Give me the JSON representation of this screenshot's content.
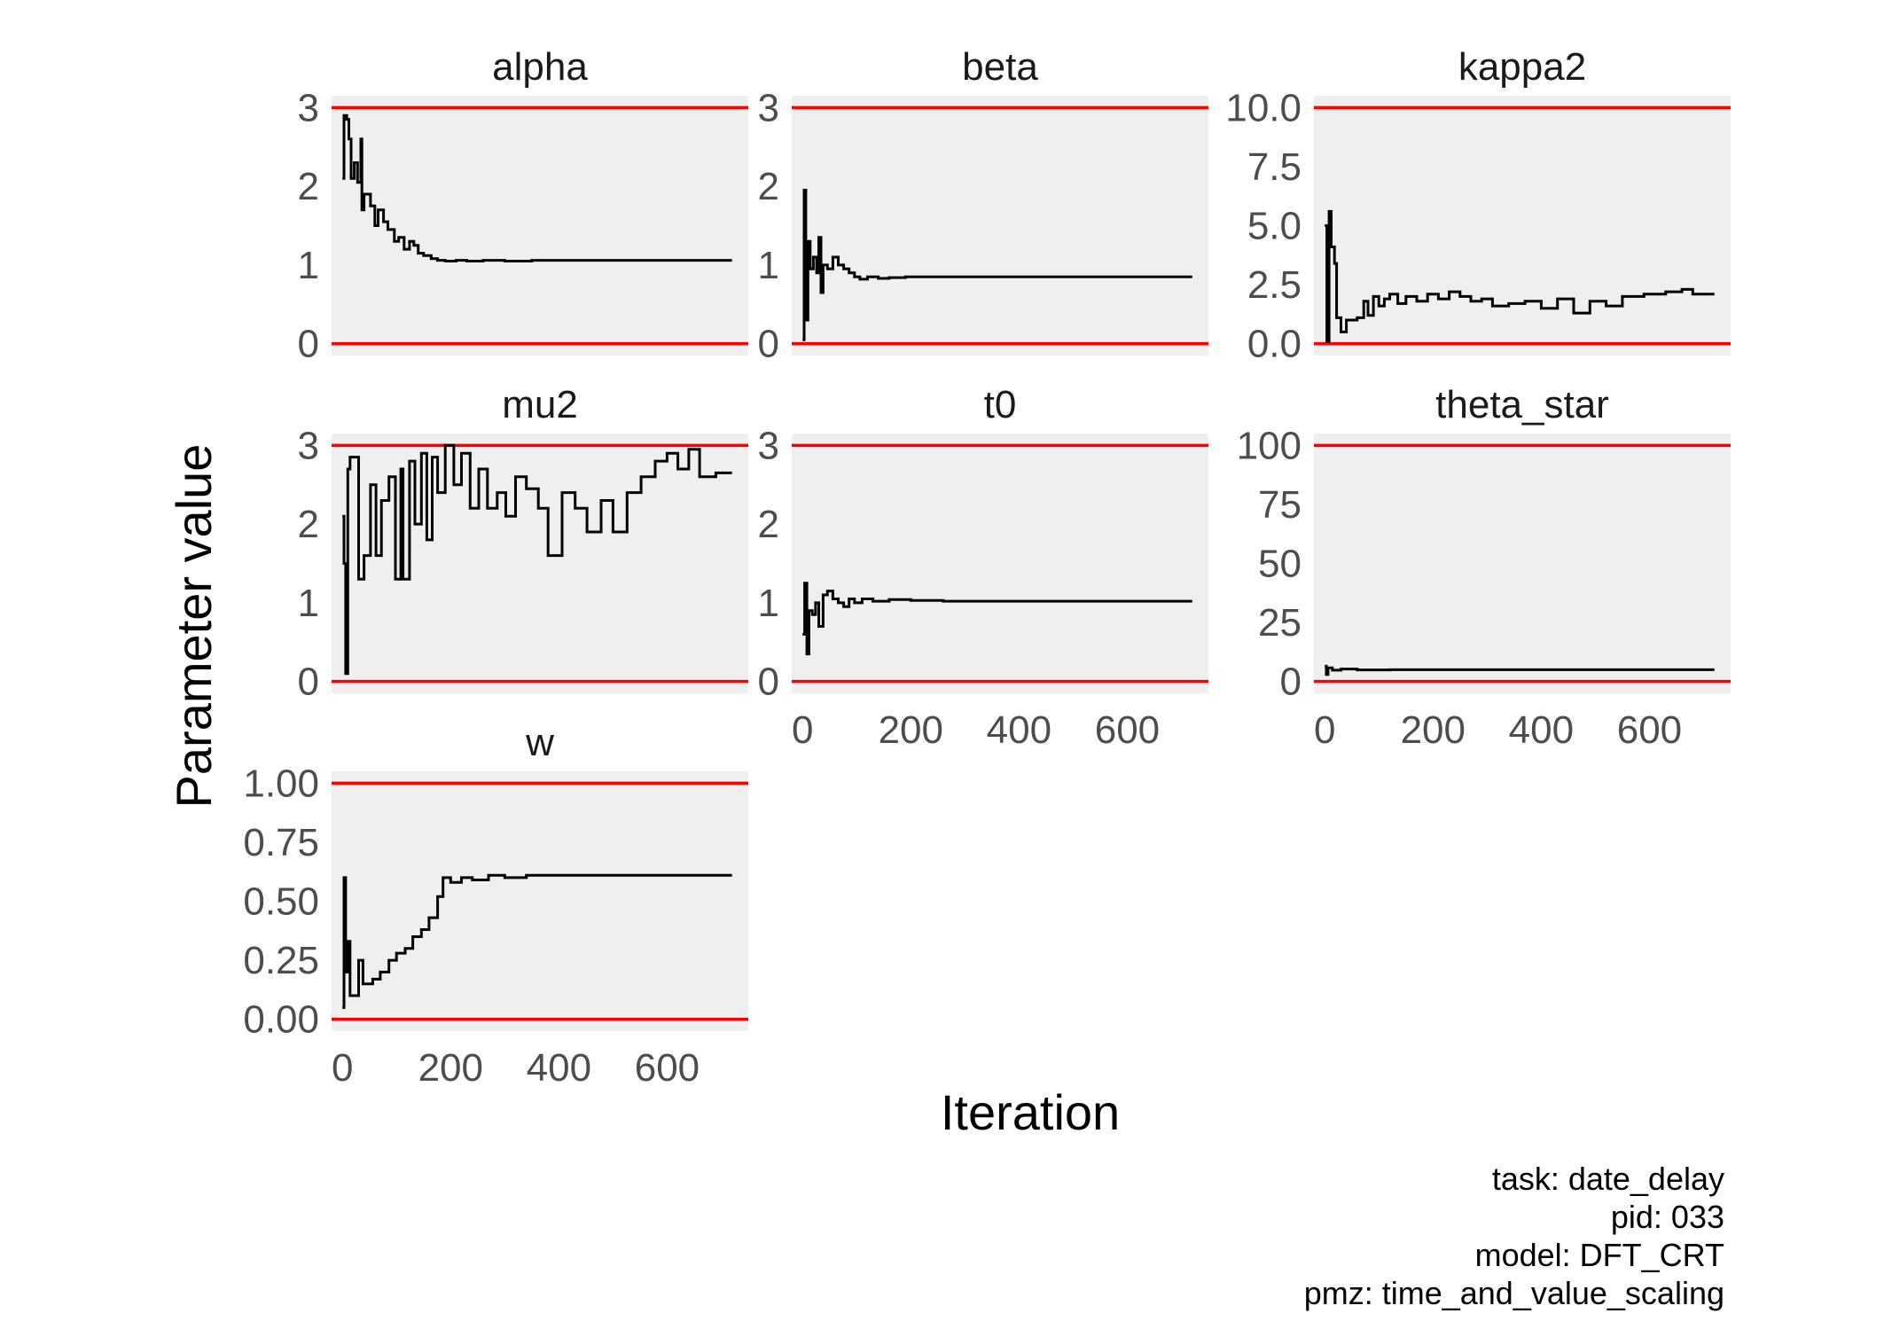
{
  "chart_data": {
    "type": "line",
    "xlabel": "Iteration",
    "ylabel": "Parameter value",
    "xlim": [
      -20,
      750
    ],
    "x_ticks": [
      "0",
      "200",
      "400",
      "600"
    ],
    "x_tick_values": [
      0,
      200,
      400,
      600
    ],
    "colors": {
      "panel": "#efefef",
      "bound_line": "#ff0000",
      "trace": "#000000",
      "tick_text": "#4d4d4d"
    },
    "panels": [
      {
        "name": "alpha",
        "ylim": [
          -0.15,
          3.15
        ],
        "y_ticks": [
          "0",
          "1",
          "2",
          "3"
        ],
        "y_tick_values": [
          0,
          1,
          2,
          3
        ],
        "bounds": [
          0,
          3
        ],
        "trace": [
          [
            0,
            2.1
          ],
          [
            3,
            2.9
          ],
          [
            8,
            2.85
          ],
          [
            12,
            2.6
          ],
          [
            16,
            2.1
          ],
          [
            22,
            2.3
          ],
          [
            28,
            2.05
          ],
          [
            34,
            2.6
          ],
          [
            36,
            1.7
          ],
          [
            40,
            1.9
          ],
          [
            52,
            1.75
          ],
          [
            60,
            1.5
          ],
          [
            66,
            1.7
          ],
          [
            76,
            1.55
          ],
          [
            84,
            1.45
          ],
          [
            96,
            1.3
          ],
          [
            104,
            1.35
          ],
          [
            114,
            1.2
          ],
          [
            124,
            1.3
          ],
          [
            132,
            1.25
          ],
          [
            140,
            1.15
          ],
          [
            150,
            1.12
          ],
          [
            164,
            1.08
          ],
          [
            176,
            1.06
          ],
          [
            190,
            1.05
          ],
          [
            210,
            1.06
          ],
          [
            230,
            1.05
          ],
          [
            260,
            1.06
          ],
          [
            300,
            1.05
          ],
          [
            350,
            1.06
          ],
          [
            720,
            1.06
          ]
        ]
      },
      {
        "name": "beta",
        "ylim": [
          -0.15,
          3.15
        ],
        "y_ticks": [
          "0",
          "1",
          "2",
          "3"
        ],
        "y_tick_values": [
          0,
          1,
          2,
          3
        ],
        "bounds": [
          0,
          3
        ],
        "trace": [
          [
            0,
            0.05
          ],
          [
            3,
            1.95
          ],
          [
            6,
            0.3
          ],
          [
            10,
            1.3
          ],
          [
            14,
            0.95
          ],
          [
            20,
            1.1
          ],
          [
            26,
            0.9
          ],
          [
            30,
            1.35
          ],
          [
            34,
            0.65
          ],
          [
            38,
            1.0
          ],
          [
            46,
            0.95
          ],
          [
            56,
            1.1
          ],
          [
            66,
            1.0
          ],
          [
            76,
            0.95
          ],
          [
            86,
            0.9
          ],
          [
            96,
            0.85
          ],
          [
            106,
            0.82
          ],
          [
            120,
            0.85
          ],
          [
            140,
            0.83
          ],
          [
            160,
            0.84
          ],
          [
            190,
            0.85
          ],
          [
            250,
            0.85
          ],
          [
            720,
            0.85
          ]
        ]
      },
      {
        "name": "kappa2",
        "ylim": [
          -0.5,
          10.5
        ],
        "y_ticks": [
          "0.0",
          "2.5",
          "5.0",
          "7.5",
          "10.0"
        ],
        "y_tick_values": [
          0,
          2.5,
          5.0,
          7.5,
          10.0
        ],
        "bounds": [
          0,
          10
        ],
        "trace": [
          [
            0,
            5.0
          ],
          [
            4,
            0.1
          ],
          [
            8,
            5.6
          ],
          [
            12,
            4.1
          ],
          [
            18,
            3.4
          ],
          [
            22,
            1.1
          ],
          [
            30,
            0.5
          ],
          [
            40,
            1.0
          ],
          [
            60,
            1.1
          ],
          [
            72,
            1.8
          ],
          [
            80,
            1.2
          ],
          [
            90,
            2.0
          ],
          [
            100,
            1.6
          ],
          [
            110,
            1.9
          ],
          [
            120,
            2.1
          ],
          [
            135,
            1.7
          ],
          [
            150,
            2.0
          ],
          [
            170,
            1.8
          ],
          [
            190,
            2.1
          ],
          [
            210,
            1.9
          ],
          [
            230,
            2.2
          ],
          [
            250,
            2.0
          ],
          [
            270,
            1.8
          ],
          [
            290,
            1.9
          ],
          [
            310,
            1.6
          ],
          [
            340,
            1.7
          ],
          [
            370,
            1.8
          ],
          [
            400,
            1.5
          ],
          [
            430,
            1.9
          ],
          [
            460,
            1.3
          ],
          [
            490,
            1.8
          ],
          [
            520,
            1.6
          ],
          [
            550,
            2.0
          ],
          [
            590,
            2.1
          ],
          [
            630,
            2.2
          ],
          [
            660,
            2.3
          ],
          [
            680,
            2.1
          ],
          [
            720,
            2.1
          ]
        ]
      },
      {
        "name": "mu2",
        "ylim": [
          -0.15,
          3.15
        ],
        "y_ticks": [
          "0",
          "1",
          "2",
          "3"
        ],
        "y_tick_values": [
          0,
          1,
          2,
          3
        ],
        "bounds": [
          0,
          3
        ],
        "trace": [
          [
            0,
            2.1
          ],
          [
            3,
            1.5
          ],
          [
            6,
            0.1
          ],
          [
            10,
            2.7
          ],
          [
            14,
            2.85
          ],
          [
            30,
            1.3
          ],
          [
            40,
            1.6
          ],
          [
            52,
            2.5
          ],
          [
            62,
            1.6
          ],
          [
            72,
            2.3
          ],
          [
            86,
            2.6
          ],
          [
            98,
            1.3
          ],
          [
            108,
            2.7
          ],
          [
            112,
            1.3
          ],
          [
            124,
            2.8
          ],
          [
            134,
            2.0
          ],
          [
            146,
            2.9
          ],
          [
            156,
            1.8
          ],
          [
            166,
            2.85
          ],
          [
            176,
            2.4
          ],
          [
            190,
            3.0
          ],
          [
            206,
            2.5
          ],
          [
            220,
            2.9
          ],
          [
            236,
            2.2
          ],
          [
            252,
            2.7
          ],
          [
            268,
            2.2
          ],
          [
            286,
            2.4
          ],
          [
            302,
            2.1
          ],
          [
            320,
            2.6
          ],
          [
            340,
            2.45
          ],
          [
            362,
            2.2
          ],
          [
            380,
            1.6
          ],
          [
            406,
            2.4
          ],
          [
            430,
            2.2
          ],
          [
            452,
            1.9
          ],
          [
            478,
            2.3
          ],
          [
            500,
            1.9
          ],
          [
            526,
            2.4
          ],
          [
            552,
            2.6
          ],
          [
            578,
            2.8
          ],
          [
            600,
            2.9
          ],
          [
            620,
            2.7
          ],
          [
            640,
            2.95
          ],
          [
            660,
            2.6
          ],
          [
            690,
            2.65
          ],
          [
            720,
            2.65
          ]
        ]
      },
      {
        "name": "t0",
        "ylim": [
          -0.15,
          3.15
        ],
        "y_ticks": [
          "0",
          "1",
          "2",
          "3"
        ],
        "y_tick_values": [
          0,
          1,
          2,
          3
        ],
        "bounds": [
          0,
          3
        ],
        "trace": [
          [
            0,
            0.6
          ],
          [
            4,
            1.25
          ],
          [
            8,
            0.35
          ],
          [
            12,
            0.9
          ],
          [
            18,
            0.85
          ],
          [
            24,
            1.0
          ],
          [
            30,
            0.7
          ],
          [
            38,
            1.1
          ],
          [
            46,
            1.15
          ],
          [
            56,
            1.05
          ],
          [
            66,
            1.0
          ],
          [
            76,
            0.95
          ],
          [
            86,
            1.05
          ],
          [
            96,
            1.0
          ],
          [
            110,
            1.05
          ],
          [
            130,
            1.02
          ],
          [
            160,
            1.04
          ],
          [
            200,
            1.03
          ],
          [
            260,
            1.02
          ],
          [
            720,
            1.02
          ]
        ]
      },
      {
        "name": "theta_star",
        "ylim": [
          -5,
          105
        ],
        "y_ticks": [
          "0",
          "25",
          "50",
          "75",
          "100"
        ],
        "y_tick_values": [
          0,
          25,
          50,
          75,
          100
        ],
        "bounds": [
          0,
          100
        ],
        "trace": [
          [
            0,
            6.5
          ],
          [
            3,
            3.0
          ],
          [
            6,
            5.8
          ],
          [
            14,
            4.8
          ],
          [
            30,
            5.3
          ],
          [
            60,
            4.9
          ],
          [
            120,
            5.0
          ],
          [
            200,
            5.0
          ],
          [
            720,
            5.0
          ]
        ]
      },
      {
        "name": "w",
        "ylim": [
          -0.05,
          1.05
        ],
        "y_ticks": [
          "0.00",
          "0.25",
          "0.50",
          "0.75",
          "1.00"
        ],
        "y_tick_values": [
          0,
          0.25,
          0.5,
          0.75,
          1.0
        ],
        "bounds": [
          0,
          1
        ],
        "trace": [
          [
            0,
            0.05
          ],
          [
            3,
            0.6
          ],
          [
            6,
            0.2
          ],
          [
            10,
            0.33
          ],
          [
            14,
            0.1
          ],
          [
            22,
            0.1
          ],
          [
            30,
            0.25
          ],
          [
            38,
            0.15
          ],
          [
            56,
            0.17
          ],
          [
            70,
            0.2
          ],
          [
            86,
            0.25
          ],
          [
            100,
            0.28
          ],
          [
            116,
            0.3
          ],
          [
            130,
            0.35
          ],
          [
            146,
            0.38
          ],
          [
            160,
            0.43
          ],
          [
            176,
            0.52
          ],
          [
            186,
            0.6
          ],
          [
            200,
            0.58
          ],
          [
            220,
            0.6
          ],
          [
            240,
            0.59
          ],
          [
            270,
            0.61
          ],
          [
            300,
            0.6
          ],
          [
            340,
            0.61
          ],
          [
            400,
            0.61
          ],
          [
            720,
            0.61
          ]
        ]
      }
    ],
    "caption": [
      "task: date_delay",
      "pid: 033",
      "model: DFT_CRT",
      "pmz: time_and_value_scaling"
    ]
  }
}
